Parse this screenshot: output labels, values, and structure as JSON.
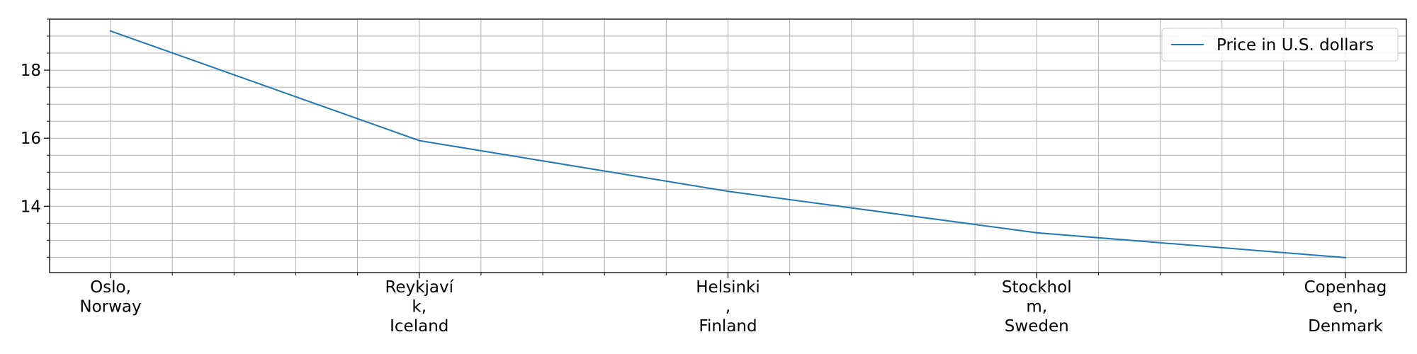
{
  "chart_data": {
    "type": "line",
    "categories": [
      "Oslo,\nNorway",
      "Reykjaví\nk,\nIceland",
      "Helsinki\n,\nFinland",
      "Stockhol\nm,\nSweden",
      "Copenhag\nen,\nDenmark"
    ],
    "series": [
      {
        "name": "Price in U.S. dollars",
        "values": [
          19.15,
          15.93,
          14.44,
          13.22,
          12.49
        ],
        "color": "#1f77b4"
      }
    ],
    "title": "",
    "xlabel": "",
    "ylabel": "",
    "ylim": [
      12.05,
      19.5
    ],
    "yticks": [
      14,
      16,
      18
    ],
    "ytick_labels": [
      "14",
      "16",
      "18"
    ],
    "grid": true,
    "minor_grid": true,
    "legend_position": "top-right"
  }
}
